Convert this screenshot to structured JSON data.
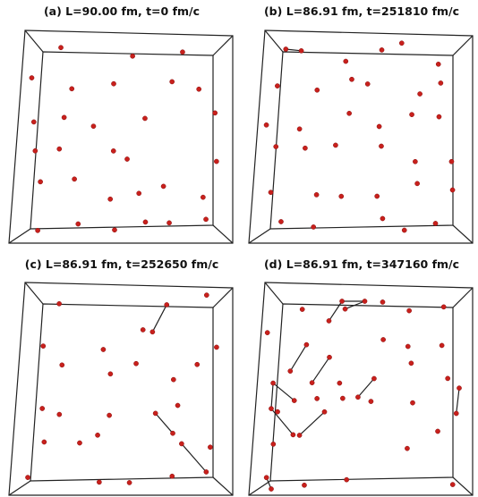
{
  "panels": [
    {
      "title": "(a) L=90.00 fm, t=0 fm/c"
    },
    {
      "title": "(b) L=86.91 fm, t=251810 fm/c"
    },
    {
      "title": "(c) L=86.91 fm, t=252650 fm/c"
    },
    {
      "title": "(d) L=86.91 fm, t=347160 fm/c"
    }
  ]
}
